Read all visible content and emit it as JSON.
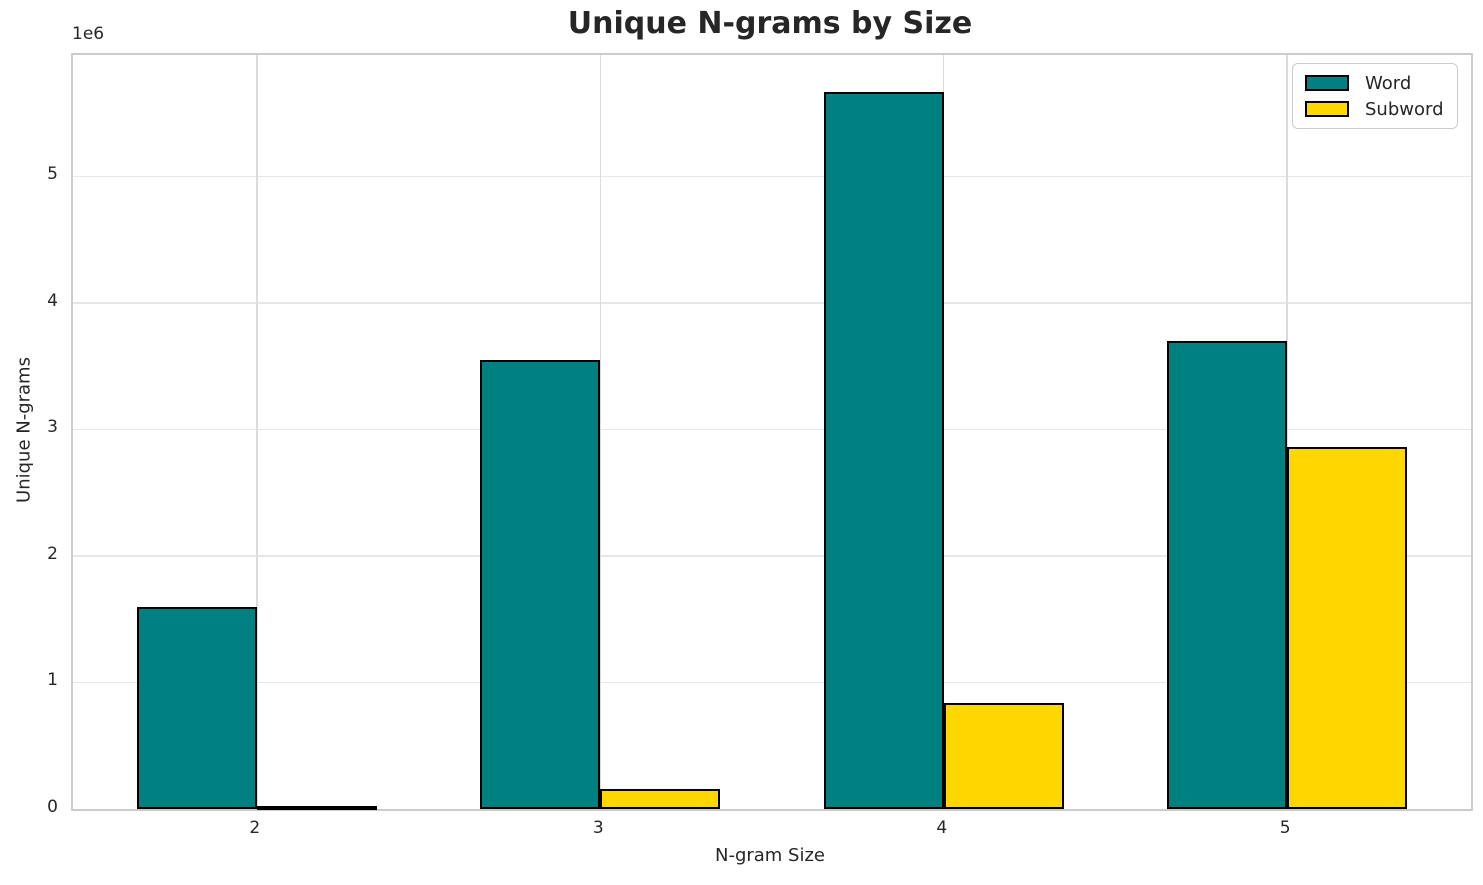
{
  "chart_data": {
    "type": "bar",
    "title": "Unique N-grams by Size",
    "xlabel": "N-gram Size",
    "ylabel": "Unique N-grams",
    "categories": [
      "2",
      "3",
      "4",
      "5"
    ],
    "x_positions": [
      2,
      3,
      4,
      5
    ],
    "series": [
      {
        "name": "Word",
        "color": "#008080",
        "values": [
          1600000,
          3550000,
          5670000,
          3700000
        ]
      },
      {
        "name": "Subword",
        "color": "#FFD700",
        "values": [
          25000,
          160000,
          840000,
          2860000
        ]
      }
    ],
    "bar_width": 0.35,
    "bar_edge_color": "#000000",
    "xlim": [
      1.465,
      5.535
    ],
    "ylim": [
      0,
      5960000
    ],
    "yticks": [
      0,
      1000000,
      2000000,
      3000000,
      4000000,
      5000000
    ],
    "ytick_labels": [
      "0",
      "1",
      "2",
      "3",
      "4",
      "5"
    ],
    "y_offset_text": "1e6",
    "grid": true,
    "legend_position": "upper right"
  }
}
